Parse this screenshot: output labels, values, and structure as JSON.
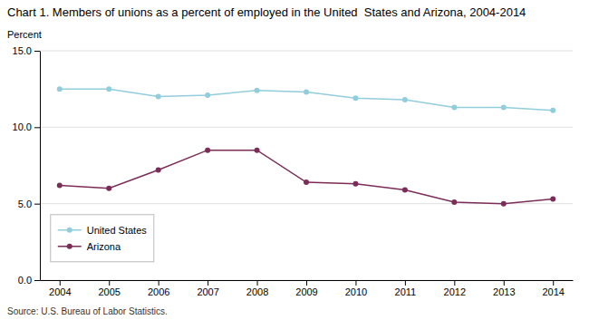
{
  "chart_data": {
    "type": "line",
    "title": "Chart 1. Members of unions as a percent of employed in the United  States and Arizona, 2004-2014",
    "y_label": "Percent",
    "annotations": [
      "Source: U.S. Bureau of Labor Statistics."
    ],
    "x": [
      2004,
      2005,
      2006,
      2007,
      2008,
      2009,
      2010,
      2011,
      2012,
      2013,
      2014
    ],
    "series": [
      {
        "name": "United States",
        "color": "#92CDDC",
        "marker": "circle",
        "line_style": "solid",
        "values": [
          12.5,
          12.5,
          12.0,
          12.1,
          12.4,
          12.3,
          11.9,
          11.8,
          11.3,
          11.3,
          11.1
        ]
      },
      {
        "name": "Arizona",
        "color": "#7B2D57",
        "marker": "circle",
        "line_style": "solid",
        "values": [
          6.2,
          6.0,
          7.2,
          8.5,
          8.5,
          6.4,
          6.3,
          5.9,
          5.1,
          5.0,
          5.3
        ]
      }
    ],
    "xlim": [
      2003.6,
      2014.4
    ],
    "xticks": [
      2004,
      2005,
      2006,
      2007,
      2008,
      2009,
      2010,
      2011,
      2012,
      2013,
      2014
    ],
    "ylim": [
      0.0,
      15.0
    ],
    "yticks": [
      {
        "value": 0.0,
        "label": "0.0"
      },
      {
        "value": 5.0,
        "label": "5.0"
      },
      {
        "value": 10.0,
        "label": "10.0"
      },
      {
        "value": 15.0,
        "label": "15.0"
      }
    ],
    "grid": "y",
    "legend": "lower left"
  }
}
